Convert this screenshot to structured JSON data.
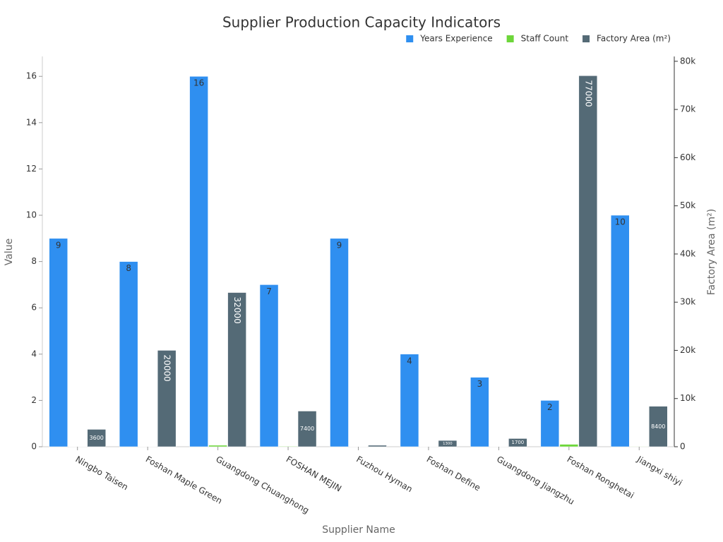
{
  "chart_data": {
    "type": "bar",
    "title": "Supplier Production Capacity Indicators",
    "x_label": "Supplier Name",
    "y_label": "Value",
    "y2_label": "Factory Area (m²)",
    "categories": [
      "Ningbo Taisen",
      "Foshan Maple Green",
      "Guangdong Chuanghong",
      "FOSHAN MEJIN",
      "Fuzhou Hyman",
      "Foshan Define",
      "Guangdong Jiangzhu",
      "Foshan Ronghetai",
      "Jiangxi shiyi"
    ],
    "series": [
      {
        "name": "Years Experience",
        "color": "#2f8ff0",
        "values": [
          9,
          8,
          16,
          7,
          9,
          4,
          3,
          2,
          10
        ]
      },
      {
        "name": "Staff Count",
        "color": "#6dd63a",
        "axis": "y2",
        "values": [
          50,
          60,
          300,
          100,
          40,
          50,
          50,
          500,
          80
        ]
      },
      {
        "name": "Factory Area (m²)",
        "color": "#546a76",
        "axis": "y2",
        "values": [
          3600,
          20000,
          32000,
          7400,
          300,
          1300,
          1700,
          77000,
          8400
        ]
      }
    ],
    "ylim": [
      0,
      16.86
    ],
    "yticks": [
      0,
      2,
      4,
      6,
      8,
      10,
      12,
      14,
      16
    ],
    "y2lim": [
      0,
      81000
    ],
    "y2ticks": [
      0,
      {
        "value": 10000,
        "label": "10k"
      },
      {
        "value": 20000,
        "label": "20k"
      },
      {
        "value": 30000,
        "label": "30k"
      },
      {
        "value": 40000,
        "label": "40k"
      },
      {
        "value": 50000,
        "label": "50k"
      },
      {
        "value": 60000,
        "label": "60k"
      },
      {
        "value": 70000,
        "label": "70k"
      },
      {
        "value": 80000,
        "label": "80k"
      }
    ],
    "legend": "top-right",
    "grid": false
  }
}
